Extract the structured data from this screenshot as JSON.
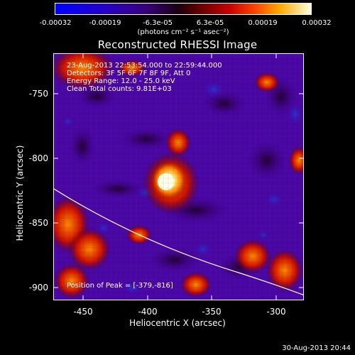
{
  "colorbar": {
    "ticks": [
      "-0.00032",
      "-0.00019",
      "-6.3e-05",
      "6.3e-05",
      "0.00019",
      "0.00032"
    ],
    "unit": "(photons cm⁻² s⁻¹ asec⁻²)"
  },
  "title": "Reconstructed RHESSI Image",
  "annotations": {
    "time": "23-Aug-2013 22:53:54.000 to 22:59:44.000",
    "detectors": "Detectors: 3F 5F 6F 7F 8F 9F, Att 0",
    "energy": "Energy Range: 12.0 - 25.0 keV",
    "clean": "Clean    Total counts: 9.81E+03",
    "peak": "Position of Peak = [-379,-816]"
  },
  "axes": {
    "xlabel": "Heliocentric X (arcsec)",
    "ylabel": "Heliocentric Y (arcsec)",
    "xticks": [
      "-450",
      "-400",
      "-350",
      "-300"
    ],
    "yticks": [
      "-750",
      "-800",
      "-850",
      "-900"
    ]
  },
  "footer": "30-Aug-2013 20:44"
}
